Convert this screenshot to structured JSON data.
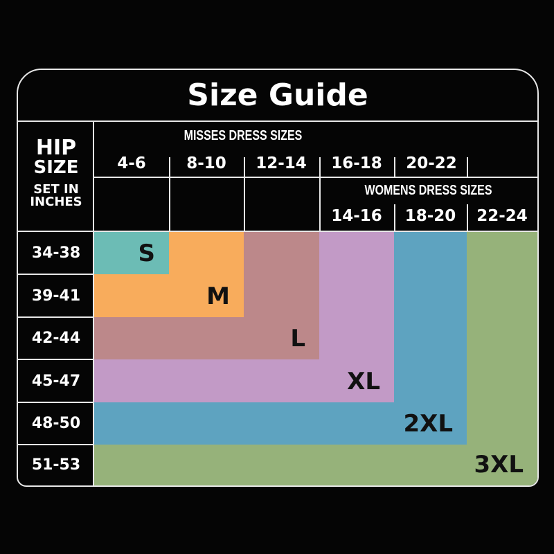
{
  "title": "Size Guide",
  "hip_header": {
    "line1": "HIP",
    "line2": "SIZE",
    "line3": "SET IN",
    "line4": "INCHES"
  },
  "misses": {
    "heading": "MISSES DRESS SIZES",
    "sizes": [
      "4-6",
      "8-10",
      "12-14",
      "16-18",
      "20-22"
    ]
  },
  "womens": {
    "heading": "WOMENS DRESS SIZES",
    "sizes": [
      "14-16",
      "18-20",
      "22-24"
    ]
  },
  "hip_rows": [
    "34-38",
    "39-41",
    "42-44",
    "45-47",
    "48-50",
    "51-53"
  ],
  "size_blocks": [
    {
      "label": "3XL",
      "color": "#96b27a"
    },
    {
      "label": "2XL",
      "color": "#5ea3c0"
    },
    {
      "label": "XL",
      "color": "#c29ac6"
    },
    {
      "label": "L",
      "color": "#bc888a"
    },
    {
      "label": "M",
      "color": "#f8ac5c"
    },
    {
      "label": "S",
      "color": "#6cbcb5"
    }
  ]
}
